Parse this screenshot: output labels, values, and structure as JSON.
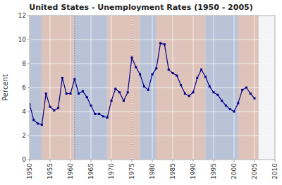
{
  "chart_data": {
    "type": "line",
    "title": "United States - Unemployment Rates (1950 - 2005)",
    "y_label": "Percent",
    "x": [
      1950,
      1951,
      1952,
      1953,
      1954,
      1955,
      1956,
      1957,
      1958,
      1959,
      1960,
      1961,
      1962,
      1963,
      1964,
      1965,
      1966,
      1967,
      1968,
      1969,
      1970,
      1971,
      1972,
      1973,
      1974,
      1975,
      1976,
      1977,
      1978,
      1979,
      1980,
      1981,
      1982,
      1983,
      1984,
      1985,
      1986,
      1987,
      1988,
      1989,
      1990,
      1991,
      1992,
      1993,
      1994,
      1995,
      1996,
      1997,
      1998,
      1999,
      2000,
      2001,
      2002,
      2003,
      2004,
      2005
    ],
    "values": [
      4.6,
      3.3,
      3.0,
      2.9,
      5.5,
      4.4,
      4.1,
      4.3,
      6.8,
      5.5,
      5.5,
      6.7,
      5.5,
      5.7,
      5.2,
      4.5,
      3.8,
      3.8,
      3.6,
      3.5,
      4.9,
      5.9,
      5.6,
      4.9,
      5.6,
      8.5,
      7.7,
      7.1,
      6.1,
      5.8,
      7.1,
      7.6,
      9.7,
      9.6,
      7.5,
      7.2,
      7.0,
      6.2,
      5.5,
      5.3,
      5.6,
      6.8,
      7.5,
      6.9,
      6.1,
      5.6,
      5.4,
      4.9,
      4.5,
      4.2,
      4.0,
      4.7,
      5.8,
      6.0,
      5.5,
      5.1
    ],
    "color": "#00008B",
    "marker": "square",
    "xlim": [
      1950,
      2010
    ],
    "xticks": [
      1950,
      1955,
      1960,
      1965,
      1970,
      1975,
      1980,
      1985,
      1990,
      1995,
      2000,
      2005,
      2010
    ],
    "ylim": [
      0,
      12
    ],
    "yticks": [
      0,
      2,
      4,
      6,
      8,
      10,
      12
    ],
    "grid": true,
    "bands": [
      {
        "start": 1950,
        "end": 1953,
        "color": "#8899BB"
      },
      {
        "start": 1953,
        "end": 1961,
        "color": "#CC9988"
      },
      {
        "start": 1961,
        "end": 1969,
        "color": "#8899BB"
      },
      {
        "start": 1969,
        "end": 1977,
        "color": "#CC9988"
      },
      {
        "start": 1977,
        "end": 1981,
        "color": "#8899BB"
      },
      {
        "start": 1981,
        "end": 1993,
        "color": "#CC9988"
      },
      {
        "start": 1993,
        "end": 2001,
        "color": "#8899BB"
      },
      {
        "start": 2001,
        "end": 2006,
        "color": "#CC9988"
      }
    ],
    "vlines": [
      {
        "x": 1961,
        "color": "#8899BB",
        "line_style": "dotted"
      },
      {
        "x": 1975,
        "color": "#CC9988",
        "line_style": "dotted"
      }
    ]
  }
}
